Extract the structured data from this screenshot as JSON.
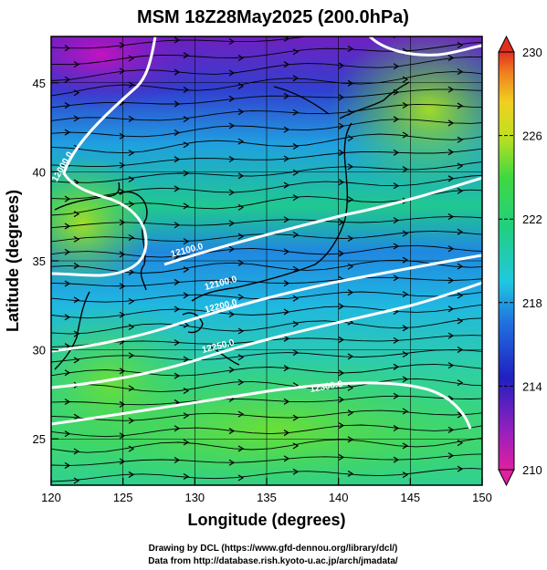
{
  "chart_data": {
    "type": "heatmap",
    "title": "MSM 18Z28May2025 (200.0hPa)",
    "xlabel": "Longitude (degrees)",
    "ylabel": "Latitude  (degrees)",
    "xlim": [
      120,
      150
    ],
    "ylim": [
      22.4,
      47.6
    ],
    "x_ticks": [
      "120",
      "125",
      "130",
      "135",
      "140",
      "145",
      "150"
    ],
    "y_ticks": [
      "25",
      "30",
      "35",
      "40",
      "45"
    ],
    "colorbar": {
      "range": [
        210,
        230
      ],
      "ticks": [
        "210",
        "214",
        "218",
        "222",
        "226",
        "230"
      ]
    },
    "contour_labels": [
      "12000.0",
      "12100.0",
      "12200.0",
      "12250.0",
      "12300.0",
      "12350.0"
    ],
    "grid": true,
    "colors": {
      "low": "#c000c0",
      "blue": "#2030d0",
      "cyan": "#20c8e0",
      "green": "#30d060",
      "yellow": "#e8e020",
      "high": "#e03020",
      "contour": "#ffffff",
      "streamline": "#000000"
    }
  },
  "footer": {
    "line1": "Drawing by DCL (https://www.gfd-dennou.org/library/dcl/)",
    "line2": "Data from http://database.rish.kyoto-u.ac.jp/arch/jmadata/"
  }
}
